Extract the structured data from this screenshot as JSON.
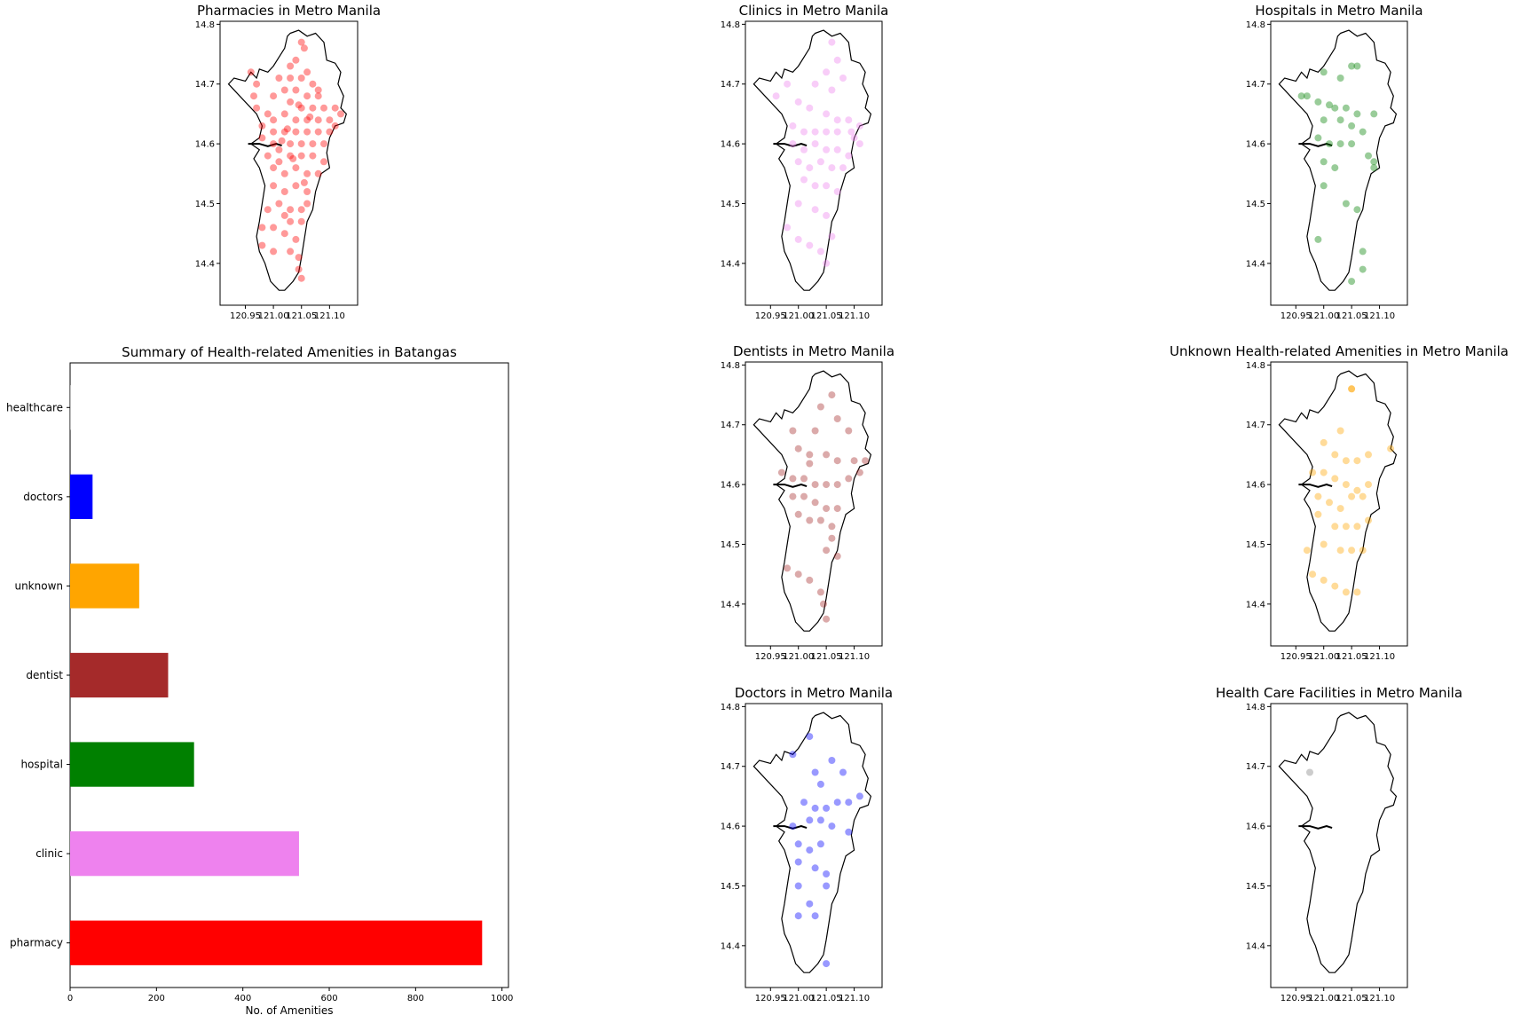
{
  "chart_data": [
    {
      "id": "pharmacy-map",
      "type": "scatter",
      "title": "Pharmacies in Metro Manila",
      "xlim": [
        120.905,
        121.15
      ],
      "ylim": [
        14.33,
        14.805
      ],
      "xticks": [
        "120.95",
        "121.00",
        "121.05",
        "121.10"
      ],
      "yticks": [
        "14.4",
        "14.5",
        "14.6",
        "14.7",
        "14.8"
      ],
      "color": "#ff0000",
      "points": [
        [
          121.05,
          14.77
        ],
        [
          121.055,
          14.76
        ],
        [
          121.04,
          14.74
        ],
        [
          121.06,
          14.72
        ],
        [
          121.03,
          14.73
        ],
        [
          121.05,
          14.71
        ],
        [
          121.07,
          14.7
        ],
        [
          121.01,
          14.71
        ],
        [
          121.02,
          14.69
        ],
        [
          121.04,
          14.69
        ],
        [
          121.06,
          14.68
        ],
        [
          121.08,
          14.68
        ],
        [
          120.96,
          14.72
        ],
        [
          120.97,
          14.7
        ],
        [
          121.0,
          14.68
        ],
        [
          121.03,
          14.67
        ],
        [
          121.05,
          14.66
        ],
        [
          121.07,
          14.66
        ],
        [
          121.09,
          14.66
        ],
        [
          121.11,
          14.66
        ],
        [
          120.97,
          14.66
        ],
        [
          120.99,
          14.65
        ],
        [
          121.02,
          14.65
        ],
        [
          121.04,
          14.64
        ],
        [
          121.06,
          14.64
        ],
        [
          121.08,
          14.64
        ],
        [
          121.1,
          14.64
        ],
        [
          121.12,
          14.65
        ],
        [
          120.98,
          14.63
        ],
        [
          121.0,
          14.62
        ],
        [
          121.02,
          14.62
        ],
        [
          121.04,
          14.62
        ],
        [
          121.06,
          14.62
        ],
        [
          121.08,
          14.62
        ],
        [
          121.1,
          14.62
        ],
        [
          120.98,
          14.61
        ],
        [
          121.0,
          14.6
        ],
        [
          121.01,
          14.59
        ],
        [
          121.03,
          14.6
        ],
        [
          121.05,
          14.6
        ],
        [
          121.07,
          14.6
        ],
        [
          121.09,
          14.6
        ],
        [
          120.99,
          14.58
        ],
        [
          121.01,
          14.57
        ],
        [
          121.03,
          14.58
        ],
        [
          121.05,
          14.58
        ],
        [
          121.07,
          14.58
        ],
        [
          121.09,
          14.57
        ],
        [
          121.0,
          14.56
        ],
        [
          121.02,
          14.55
        ],
        [
          121.04,
          14.56
        ],
        [
          121.06,
          14.55
        ],
        [
          121.08,
          14.55
        ],
        [
          121.0,
          14.53
        ],
        [
          121.02,
          14.52
        ],
        [
          121.04,
          14.53
        ],
        [
          121.06,
          14.52
        ],
        [
          121.01,
          14.5
        ],
        [
          121.03,
          14.49
        ],
        [
          121.05,
          14.49
        ],
        [
          121.06,
          14.5
        ],
        [
          120.99,
          14.49
        ],
        [
          120.98,
          14.46
        ],
        [
          121.0,
          14.46
        ],
        [
          121.02,
          14.45
        ],
        [
          121.04,
          14.44
        ],
        [
          120.98,
          14.43
        ],
        [
          121.0,
          14.42
        ],
        [
          121.03,
          14.42
        ],
        [
          121.045,
          14.41
        ],
        [
          121.045,
          14.39
        ],
        [
          121.05,
          14.375
        ],
        [
          121.03,
          14.47
        ],
        [
          121.05,
          14.47
        ],
        [
          121.02,
          14.48
        ],
        [
          120.965,
          14.68
        ],
        [
          121.11,
          14.63
        ],
        [
          121.0,
          14.64
        ],
        [
          121.08,
          14.69
        ],
        [
          121.03,
          14.71
        ],
        [
          121.065,
          14.645
        ],
        [
          121.015,
          14.605
        ],
        [
          121.035,
          14.575
        ],
        [
          121.055,
          14.535
        ],
        [
          121.025,
          14.625
        ],
        [
          121.045,
          14.665
        ]
      ]
    },
    {
      "id": "clinic-map",
      "type": "scatter",
      "title": "Clinics in Metro Manila",
      "xlim": [
        120.905,
        121.15
      ],
      "ylim": [
        14.33,
        14.805
      ],
      "xticks": [
        "120.95",
        "121.00",
        "121.05",
        "121.10"
      ],
      "yticks": [
        "14.4",
        "14.5",
        "14.6",
        "14.7",
        "14.8"
      ],
      "color": "#ee82ee",
      "points": [
        [
          121.06,
          14.77
        ],
        [
          121.07,
          14.74
        ],
        [
          121.05,
          14.72
        ],
        [
          121.08,
          14.71
        ],
        [
          121.03,
          14.7
        ],
        [
          121.06,
          14.69
        ],
        [
          120.98,
          14.7
        ],
        [
          120.96,
          14.68
        ],
        [
          121.0,
          14.67
        ],
        [
          121.02,
          14.66
        ],
        [
          121.05,
          14.65
        ],
        [
          121.07,
          14.64
        ],
        [
          121.09,
          14.64
        ],
        [
          121.11,
          14.63
        ],
        [
          120.99,
          14.63
        ],
        [
          121.01,
          14.62
        ],
        [
          121.03,
          14.62
        ],
        [
          121.05,
          14.62
        ],
        [
          121.07,
          14.62
        ],
        [
          121.1,
          14.61
        ],
        [
          120.99,
          14.6
        ],
        [
          121.01,
          14.59
        ],
        [
          121.03,
          14.6
        ],
        [
          121.05,
          14.59
        ],
        [
          121.07,
          14.59
        ],
        [
          121.09,
          14.58
        ],
        [
          121.0,
          14.57
        ],
        [
          121.02,
          14.56
        ],
        [
          121.04,
          14.57
        ],
        [
          121.06,
          14.56
        ],
        [
          121.08,
          14.56
        ],
        [
          121.01,
          14.54
        ],
        [
          121.03,
          14.53
        ],
        [
          121.05,
          14.53
        ],
        [
          121.07,
          14.52
        ],
        [
          121.0,
          14.5
        ],
        [
          121.03,
          14.49
        ],
        [
          121.05,
          14.48
        ],
        [
          120.98,
          14.46
        ],
        [
          121.0,
          14.44
        ],
        [
          121.02,
          14.43
        ],
        [
          121.04,
          14.42
        ],
        [
          121.05,
          14.4
        ],
        [
          121.06,
          14.445
        ],
        [
          121.11,
          14.6
        ],
        [
          121.095,
          14.62
        ]
      ]
    },
    {
      "id": "hospital-map",
      "type": "scatter",
      "title": "Hospitals in Metro Manila",
      "xlim": [
        120.905,
        121.15
      ],
      "ylim": [
        14.33,
        14.805
      ],
      "xticks": [
        "120.95",
        "121.00",
        "121.05",
        "121.10"
      ],
      "yticks": [
        "14.4",
        "14.5",
        "14.6",
        "14.7",
        "14.8"
      ],
      "color": "#008000",
      "points": [
        [
          121.05,
          14.73
        ],
        [
          121.06,
          14.73
        ],
        [
          121.0,
          14.72
        ],
        [
          121.03,
          14.71
        ],
        [
          120.97,
          14.68
        ],
        [
          120.99,
          14.67
        ],
        [
          121.02,
          14.66
        ],
        [
          121.04,
          14.66
        ],
        [
          121.06,
          14.65
        ],
        [
          121.09,
          14.65
        ],
        [
          121.0,
          14.64
        ],
        [
          121.03,
          14.64
        ],
        [
          121.05,
          14.63
        ],
        [
          121.07,
          14.62
        ],
        [
          120.99,
          14.61
        ],
        [
          121.01,
          14.6
        ],
        [
          121.03,
          14.6
        ],
        [
          121.05,
          14.6
        ],
        [
          121.08,
          14.58
        ],
        [
          121.09,
          14.57
        ],
        [
          121.0,
          14.57
        ],
        [
          121.02,
          14.56
        ],
        [
          121.09,
          14.56
        ],
        [
          121.0,
          14.53
        ],
        [
          121.04,
          14.5
        ],
        [
          121.06,
          14.49
        ],
        [
          120.99,
          14.44
        ],
        [
          121.07,
          14.42
        ],
        [
          121.07,
          14.39
        ],
        [
          121.05,
          14.37
        ],
        [
          120.96,
          14.68
        ],
        [
          121.01,
          14.665
        ]
      ]
    },
    {
      "id": "dentist-map",
      "type": "scatter",
      "title": "Dentists in Metro Manila",
      "xlim": [
        120.905,
        121.15
      ],
      "ylim": [
        14.33,
        14.805
      ],
      "xticks": [
        "120.95",
        "121.00",
        "121.05",
        "121.10"
      ],
      "yticks": [
        "14.4",
        "14.5",
        "14.6",
        "14.7",
        "14.8"
      ],
      "color": "#a52a2a",
      "points": [
        [
          121.06,
          14.75
        ],
        [
          121.04,
          14.73
        ],
        [
          121.07,
          14.71
        ],
        [
          121.03,
          14.69
        ],
        [
          121.09,
          14.69
        ],
        [
          120.99,
          14.69
        ],
        [
          121.0,
          14.66
        ],
        [
          121.02,
          14.65
        ],
        [
          121.05,
          14.65
        ],
        [
          121.07,
          14.64
        ],
        [
          121.1,
          14.64
        ],
        [
          121.12,
          14.64
        ],
        [
          120.97,
          14.62
        ],
        [
          120.99,
          14.61
        ],
        [
          121.01,
          14.61
        ],
        [
          121.03,
          14.6
        ],
        [
          121.05,
          14.6
        ],
        [
          121.07,
          14.6
        ],
        [
          121.09,
          14.61
        ],
        [
          120.99,
          14.58
        ],
        [
          121.01,
          14.58
        ],
        [
          121.03,
          14.57
        ],
        [
          121.05,
          14.56
        ],
        [
          121.07,
          14.56
        ],
        [
          121.0,
          14.55
        ],
        [
          121.02,
          14.54
        ],
        [
          121.04,
          14.54
        ],
        [
          121.06,
          14.53
        ],
        [
          121.06,
          14.51
        ],
        [
          121.05,
          14.49
        ],
        [
          121.07,
          14.48
        ],
        [
          120.98,
          14.46
        ],
        [
          121.0,
          14.45
        ],
        [
          121.02,
          14.44
        ],
        [
          121.04,
          14.42
        ],
        [
          121.045,
          14.4
        ],
        [
          121.05,
          14.375
        ],
        [
          121.11,
          14.62
        ],
        [
          121.02,
          14.635
        ]
      ]
    },
    {
      "id": "unknown-map",
      "type": "scatter",
      "title": "Unknown Health-related Amenities in Metro Manila",
      "xlim": [
        120.905,
        121.15
      ],
      "ylim": [
        14.33,
        14.805
      ],
      "xticks": [
        "120.95",
        "121.00",
        "121.05",
        "121.10"
      ],
      "yticks": [
        "14.4",
        "14.5",
        "14.6",
        "14.7",
        "14.8"
      ],
      "color": "#ffa500",
      "points": [
        [
          121.05,
          14.76
        ],
        [
          121.03,
          14.69
        ],
        [
          121.0,
          14.67
        ],
        [
          121.02,
          14.65
        ],
        [
          121.04,
          14.64
        ],
        [
          121.06,
          14.64
        ],
        [
          121.08,
          14.65
        ],
        [
          121.12,
          14.66
        ],
        [
          120.98,
          14.62
        ],
        [
          121.0,
          14.62
        ],
        [
          121.02,
          14.61
        ],
        [
          121.04,
          14.6
        ],
        [
          121.06,
          14.59
        ],
        [
          121.08,
          14.6
        ],
        [
          120.99,
          14.58
        ],
        [
          121.01,
          14.57
        ],
        [
          121.03,
          14.56
        ],
        [
          121.05,
          14.58
        ],
        [
          121.07,
          14.58
        ],
        [
          120.99,
          14.55
        ],
        [
          121.02,
          14.53
        ],
        [
          121.04,
          14.53
        ],
        [
          121.06,
          14.53
        ],
        [
          121.08,
          14.54
        ],
        [
          121.0,
          14.5
        ],
        [
          121.03,
          14.49
        ],
        [
          121.05,
          14.49
        ],
        [
          121.07,
          14.49
        ],
        [
          120.98,
          14.45
        ],
        [
          121.0,
          14.44
        ],
        [
          121.02,
          14.43
        ],
        [
          121.04,
          14.42
        ],
        [
          121.06,
          14.42
        ],
        [
          120.97,
          14.49
        ],
        [
          121.05,
          14.76
        ]
      ]
    },
    {
      "id": "doctors-map",
      "type": "scatter",
      "title": "Doctors in Metro Manila",
      "xlim": [
        120.905,
        121.15
      ],
      "ylim": [
        14.33,
        14.805
      ],
      "xticks": [
        "120.95",
        "121.00",
        "121.05",
        "121.10"
      ],
      "yticks": [
        "14.4",
        "14.5",
        "14.6",
        "14.7",
        "14.8"
      ],
      "color": "#0000ff",
      "points": [
        [
          121.02,
          14.75
        ],
        [
          120.99,
          14.72
        ],
        [
          121.06,
          14.71
        ],
        [
          121.03,
          14.69
        ],
        [
          121.08,
          14.69
        ],
        [
          121.04,
          14.67
        ],
        [
          121.01,
          14.64
        ],
        [
          121.03,
          14.63
        ],
        [
          121.05,
          14.63
        ],
        [
          121.07,
          14.64
        ],
        [
          121.09,
          14.64
        ],
        [
          121.11,
          14.65
        ],
        [
          121.02,
          14.61
        ],
        [
          121.04,
          14.61
        ],
        [
          121.06,
          14.6
        ],
        [
          121.09,
          14.59
        ],
        [
          120.99,
          14.6
        ],
        [
          121.0,
          14.57
        ],
        [
          121.02,
          14.56
        ],
        [
          121.04,
          14.57
        ],
        [
          121.0,
          14.54
        ],
        [
          121.03,
          14.53
        ],
        [
          121.05,
          14.52
        ],
        [
          121.05,
          14.5
        ],
        [
          121.0,
          14.5
        ],
        [
          121.02,
          14.47
        ],
        [
          121.03,
          14.45
        ],
        [
          121.0,
          14.45
        ],
        [
          121.05,
          14.37
        ]
      ]
    },
    {
      "id": "healthcare-map",
      "type": "scatter",
      "title": "Health Care Facilities in Metro Manila",
      "xlim": [
        120.905,
        121.15
      ],
      "ylim": [
        14.33,
        14.805
      ],
      "xticks": [
        "120.95",
        "121.00",
        "121.05",
        "121.10"
      ],
      "yticks": [
        "14.4",
        "14.5",
        "14.6",
        "14.7",
        "14.8"
      ],
      "color": "#808080",
      "points": [
        [
          120.975,
          14.69
        ]
      ]
    },
    {
      "id": "summary-bar",
      "type": "bar",
      "orientation": "horizontal",
      "title": "Summary of Health-related Amenities in Batangas",
      "xlabel": "No. of Amenities",
      "xlim": [
        0,
        1015
      ],
      "xticks": [
        "0",
        "200",
        "400",
        "600",
        "800",
        "1000"
      ],
      "categories": [
        "healthcare",
        "doctors",
        "unknown",
        "dentist",
        "hospital",
        "clinic",
        "pharmacy"
      ],
      "values": [
        1,
        52,
        160,
        227,
        287,
        530,
        954
      ],
      "colors": [
        "#808080",
        "#0000ff",
        "#ffa500",
        "#a52a2a",
        "#008000",
        "#ee82ee",
        "#ff0000"
      ]
    }
  ]
}
